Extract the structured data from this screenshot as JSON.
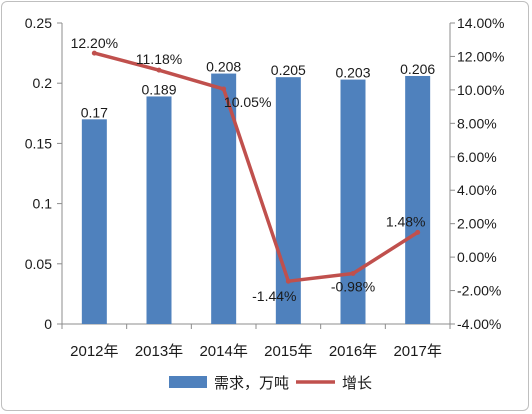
{
  "chart_data": {
    "type": "bar",
    "categories": [
      "2012年",
      "2013年",
      "2014年",
      "2015年",
      "2016年",
      "2017年"
    ],
    "series": [
      {
        "name": "需求，万吨",
        "type": "bar",
        "axis": "left",
        "color": "#4f81bd",
        "values": [
          0.17,
          0.189,
          0.208,
          0.205,
          0.203,
          0.206
        ],
        "labels": [
          "0.17",
          "0.189",
          "0.208",
          "0.205",
          "0.203",
          "0.206"
        ]
      },
      {
        "name": "增长",
        "type": "line",
        "axis": "right",
        "color": "#c0504d",
        "values": [
          12.2,
          11.18,
          10.05,
          -1.44,
          -0.98,
          1.48
        ],
        "labels": [
          "12.20%",
          "11.18%",
          "10.05%",
          "-1.44%",
          "-0.98%",
          "1.48%"
        ]
      }
    ],
    "y_left": {
      "lim": [
        0,
        0.25
      ],
      "ticks": [
        0,
        0.05,
        0.1,
        0.15,
        0.2,
        0.25
      ],
      "tick_labels": [
        "0",
        "0.05",
        "0.1",
        "0.15",
        "0.2",
        "0.25"
      ]
    },
    "y_right": {
      "lim": [
        -4,
        14
      ],
      "ticks": [
        -4,
        -2,
        0,
        2,
        4,
        6,
        8,
        10,
        12,
        14
      ],
      "tick_labels": [
        "-4.00%",
        "-2.00%",
        "0.00%",
        "2.00%",
        "4.00%",
        "6.00%",
        "8.00%",
        "10.00%",
        "12.00%",
        "14.00%"
      ]
    },
    "grid": false,
    "legend": "bottom"
  }
}
